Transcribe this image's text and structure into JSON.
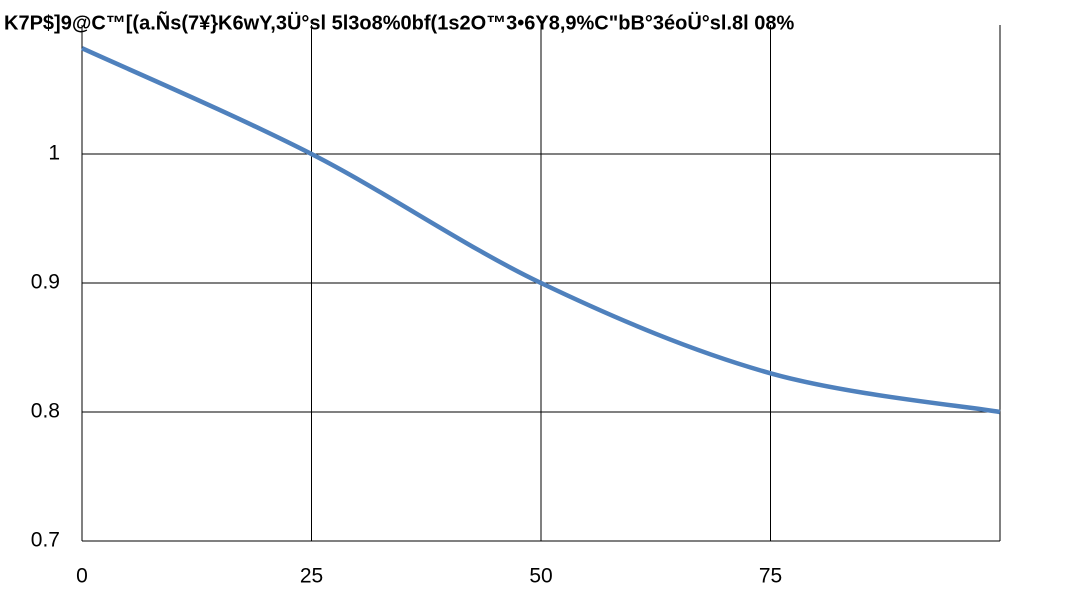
{
  "chart_data": {
    "type": "line",
    "title": "K7P$]9@C™[(a.Ñs(7¥}K6wY,3Ü°sl 5l3o8%0bf(1s2O™3•6Y8,9%C\"bB°3éoÜ°sl.8l 08%",
    "x": [
      0,
      25,
      50,
      75,
      100
    ],
    "series": [
      {
        "color": "#4f81bd",
        "values": [
          1.082,
          1.0,
          0.9,
          0.83,
          0.8
        ]
      }
    ],
    "xlim": [
      0,
      100
    ],
    "xticks": [
      0,
      25,
      50,
      75
    ],
    "ylim": [
      0.7,
      1.1
    ],
    "yticks": [
      0.7,
      0.8,
      0.9,
      1
    ],
    "grid": true
  }
}
